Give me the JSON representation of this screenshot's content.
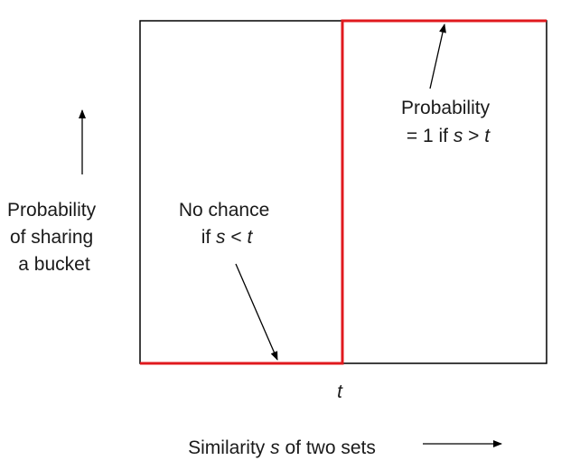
{
  "colors": {
    "frame": "#000000",
    "step_function": "#e0191e",
    "text": "#1a1a1a",
    "background": "#ffffff"
  },
  "y_axis_label": {
    "line1": "Probability",
    "line2": "of sharing",
    "line3": "a bucket"
  },
  "x_axis_label": {
    "prefix": "Similarity ",
    "variable": "s",
    "suffix": " of two sets"
  },
  "threshold_tick_label": "t",
  "annotation_no_chance": {
    "line1": "No chance",
    "line2_prefix": "if ",
    "line2_var_s": "s",
    "line2_op": " < ",
    "line2_var_t": "t"
  },
  "annotation_probability_one": {
    "line1": "Probability",
    "line2_prefix": "= 1 if ",
    "line2_var_s": "s",
    "line2_op": " > ",
    "line2_var_t": "t"
  },
  "arrows": {
    "x_axis_direction": "right-arrow-icon",
    "y_axis_direction": "up-arrow-icon"
  }
}
